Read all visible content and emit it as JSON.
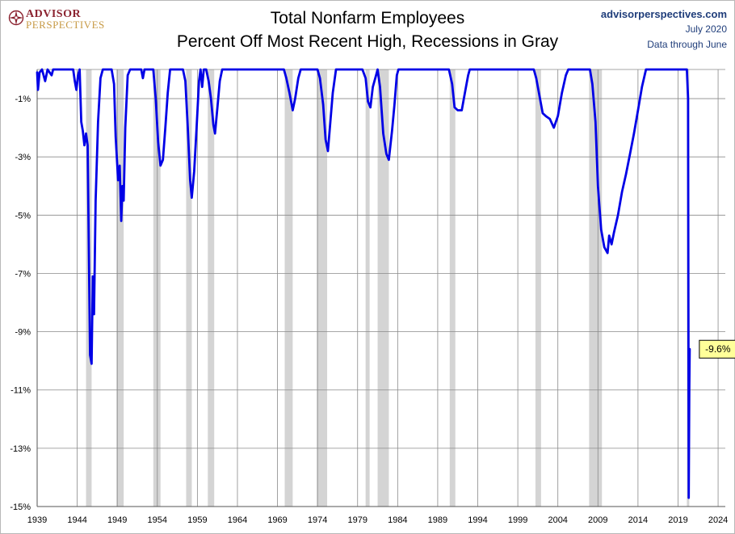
{
  "logo": {
    "line1": "ADVISOR",
    "line2": "PERSPECTIVES"
  },
  "title": "Total Nonfarm Employees",
  "subtitle": "Percent Off Most Recent High, Recessions in Gray",
  "source": {
    "site": "advisorperspectives.com",
    "date": "July 2020",
    "note": "Data through June"
  },
  "colors": {
    "line": "#0000e6",
    "recession": "#d4d4d4",
    "grid": "#8a8a8a",
    "annotation_fill": "#ffff99"
  },
  "chart_data": {
    "type": "line",
    "title": "Total Nonfarm Employees",
    "subtitle": "Percent Off Most Recent High, Recessions in Gray",
    "xlabel": "",
    "ylabel": "",
    "xlim": [
      1939,
      2024.9
    ],
    "ylim": [
      -15,
      0
    ],
    "x_ticks": [
      1939,
      1944,
      1949,
      1954,
      1959,
      1964,
      1969,
      1974,
      1979,
      1984,
      1989,
      1994,
      1999,
      2004,
      2009,
      2014,
      2019,
      2024
    ],
    "y_ticks": [
      -1,
      -3,
      -5,
      -7,
      -9,
      -11,
      -13,
      -15
    ],
    "y_tick_labels": [
      "-1%",
      "-3%",
      "-5%",
      "-7%",
      "-9%",
      "-11%",
      "-13%",
      "-15%"
    ],
    "grid": true,
    "annotation": {
      "text": "-9.6%",
      "x": 2020.45,
      "y": -9.6
    },
    "recessions": [
      [
        1945.1,
        1945.8
      ],
      [
        1948.9,
        1949.8
      ],
      [
        1953.5,
        1954.4
      ],
      [
        1957.6,
        1958.3
      ],
      [
        1960.3,
        1961.1
      ],
      [
        1969.9,
        1970.9
      ],
      [
        1973.9,
        1975.2
      ],
      [
        1980.0,
        1980.5
      ],
      [
        1981.5,
        1982.9
      ],
      [
        1990.5,
        1991.2
      ],
      [
        2001.2,
        2001.9
      ],
      [
        2007.9,
        2009.5
      ],
      [
        2020.1,
        2020.4
      ]
    ],
    "series": [
      {
        "values": [
          [
            1939.0,
            -0.1
          ],
          [
            1939.1,
            -0.7
          ],
          [
            1939.3,
            -0.1
          ],
          [
            1939.6,
            0
          ],
          [
            1940.0,
            -0.4
          ],
          [
            1940.3,
            0
          ],
          [
            1940.8,
            -0.2
          ],
          [
            1941.0,
            0
          ],
          [
            1943.5,
            0
          ],
          [
            1943.7,
            -0.4
          ],
          [
            1943.9,
            -0.7
          ],
          [
            1944.1,
            -0.2
          ],
          [
            1944.3,
            0
          ],
          [
            1944.5,
            -1.8
          ],
          [
            1944.7,
            -2.1
          ],
          [
            1944.9,
            -2.6
          ],
          [
            1945.1,
            -2.2
          ],
          [
            1945.3,
            -2.6
          ],
          [
            1945.6,
            -9.8
          ],
          [
            1945.8,
            -10.1
          ],
          [
            1945.95,
            -7.1
          ],
          [
            1946.1,
            -8.4
          ],
          [
            1946.3,
            -4.5
          ],
          [
            1946.6,
            -1.8
          ],
          [
            1946.9,
            -0.3
          ],
          [
            1947.2,
            0
          ],
          [
            1948.3,
            0
          ],
          [
            1948.6,
            -0.5
          ],
          [
            1948.8,
            -2.3
          ],
          [
            1949.1,
            -3.8
          ],
          [
            1949.3,
            -3.3
          ],
          [
            1949.5,
            -5.2
          ],
          [
            1949.65,
            -4.0
          ],
          [
            1949.8,
            -4.5
          ],
          [
            1950.0,
            -2.0
          ],
          [
            1950.3,
            -0.2
          ],
          [
            1950.6,
            0
          ],
          [
            1952.0,
            0
          ],
          [
            1952.2,
            -0.3
          ],
          [
            1952.4,
            0
          ],
          [
            1953.5,
            0
          ],
          [
            1953.8,
            -1.0
          ],
          [
            1954.1,
            -2.5
          ],
          [
            1954.4,
            -3.3
          ],
          [
            1954.7,
            -3.1
          ],
          [
            1955.0,
            -2.0
          ],
          [
            1955.3,
            -0.8
          ],
          [
            1955.6,
            0
          ],
          [
            1957.2,
            0
          ],
          [
            1957.5,
            -0.4
          ],
          [
            1957.8,
            -2.0
          ],
          [
            1958.1,
            -3.8
          ],
          [
            1958.3,
            -4.4
          ],
          [
            1958.6,
            -3.5
          ],
          [
            1958.9,
            -2.0
          ],
          [
            1959.2,
            -0.4
          ],
          [
            1959.4,
            0
          ],
          [
            1959.6,
            -0.6
          ],
          [
            1959.8,
            0
          ],
          [
            1960.1,
            0
          ],
          [
            1960.4,
            -0.4
          ],
          [
            1960.7,
            -1.0
          ],
          [
            1961.0,
            -1.9
          ],
          [
            1961.2,
            -2.2
          ],
          [
            1961.5,
            -1.3
          ],
          [
            1961.8,
            -0.4
          ],
          [
            1962.1,
            0
          ],
          [
            1969.8,
            0
          ],
          [
            1970.1,
            -0.3
          ],
          [
            1970.5,
            -0.8
          ],
          [
            1970.9,
            -1.4
          ],
          [
            1971.2,
            -1.0
          ],
          [
            1971.6,
            -0.3
          ],
          [
            1971.9,
            0
          ],
          [
            1974.0,
            0
          ],
          [
            1974.3,
            -0.3
          ],
          [
            1974.7,
            -1.2
          ],
          [
            1975.0,
            -2.4
          ],
          [
            1975.3,
            -2.8
          ],
          [
            1975.6,
            -1.8
          ],
          [
            1975.9,
            -0.8
          ],
          [
            1976.3,
            0
          ],
          [
            1979.6,
            0
          ],
          [
            1980.0,
            -0.3
          ],
          [
            1980.3,
            -1.1
          ],
          [
            1980.6,
            -1.3
          ],
          [
            1980.9,
            -0.6
          ],
          [
            1981.3,
            -0.2
          ],
          [
            1981.5,
            0
          ],
          [
            1981.8,
            -0.6
          ],
          [
            1982.2,
            -2.2
          ],
          [
            1982.6,
            -2.9
          ],
          [
            1982.9,
            -3.1
          ],
          [
            1983.3,
            -2.1
          ],
          [
            1983.6,
            -1.2
          ],
          [
            1983.9,
            -0.2
          ],
          [
            1984.1,
            0
          ],
          [
            1990.4,
            0
          ],
          [
            1990.8,
            -0.5
          ],
          [
            1991.1,
            -1.3
          ],
          [
            1991.5,
            -1.4
          ],
          [
            1992.0,
            -1.4
          ],
          [
            1992.4,
            -0.8
          ],
          [
            1992.8,
            -0.2
          ],
          [
            1993.0,
            0
          ],
          [
            2001.0,
            0
          ],
          [
            2001.3,
            -0.3
          ],
          [
            2001.7,
            -0.9
          ],
          [
            2002.1,
            -1.5
          ],
          [
            2002.5,
            -1.6
          ],
          [
            2003.0,
            -1.7
          ],
          [
            2003.5,
            -2.0
          ],
          [
            2004.0,
            -1.6
          ],
          [
            2004.5,
            -0.8
          ],
          [
            2005.0,
            -0.2
          ],
          [
            2005.3,
            0
          ],
          [
            2008.0,
            0
          ],
          [
            2008.3,
            -0.5
          ],
          [
            2008.7,
            -1.8
          ],
          [
            2009.0,
            -4.0
          ],
          [
            2009.4,
            -5.5
          ],
          [
            2009.8,
            -6.1
          ],
          [
            2010.2,
            -6.3
          ],
          [
            2010.4,
            -5.7
          ],
          [
            2010.7,
            -6.0
          ],
          [
            2011.0,
            -5.6
          ],
          [
            2011.5,
            -5.0
          ],
          [
            2012.0,
            -4.2
          ],
          [
            2012.5,
            -3.6
          ],
          [
            2013.0,
            -2.9
          ],
          [
            2013.5,
            -2.2
          ],
          [
            2014.0,
            -1.4
          ],
          [
            2014.5,
            -0.6
          ],
          [
            2015.0,
            0
          ],
          [
            2020.1,
            0
          ],
          [
            2020.25,
            -1.0
          ],
          [
            2020.33,
            -14.7
          ],
          [
            2020.4,
            -11.0
          ],
          [
            2020.45,
            -9.6
          ]
        ]
      }
    ]
  }
}
